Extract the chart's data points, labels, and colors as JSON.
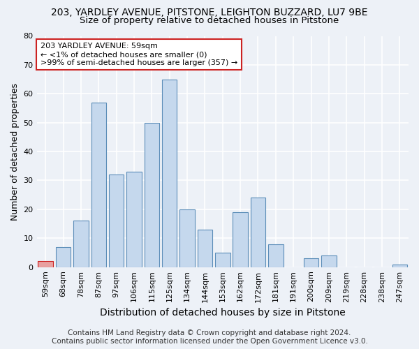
{
  "title1": "203, YARDLEY AVENUE, PITSTONE, LEIGHTON BUZZARD, LU7 9BE",
  "title2": "Size of property relative to detached houses in Pitstone",
  "xlabel": "Distribution of detached houses by size in Pitstone",
  "ylabel": "Number of detached properties",
  "categories": [
    "59sqm",
    "68sqm",
    "78sqm",
    "87sqm",
    "97sqm",
    "106sqm",
    "115sqm",
    "125sqm",
    "134sqm",
    "144sqm",
    "153sqm",
    "162sqm",
    "172sqm",
    "181sqm",
    "191sqm",
    "200sqm",
    "209sqm",
    "219sqm",
    "228sqm",
    "238sqm",
    "247sqm"
  ],
  "values": [
    2,
    7,
    16,
    57,
    32,
    33,
    50,
    65,
    20,
    13,
    5,
    19,
    24,
    8,
    0,
    3,
    4,
    0,
    0,
    0,
    1
  ],
  "bar_color": "#c5d8ed",
  "bar_edge_color": "#5b8db8",
  "highlight_index": 0,
  "highlight_color": "#e8a0a0",
  "highlight_edge_color": "#cc2222",
  "ylim": [
    0,
    80
  ],
  "yticks": [
    0,
    10,
    20,
    30,
    40,
    50,
    60,
    70,
    80
  ],
  "annotation_text1": "203 YARDLEY AVENUE: 59sqm",
  "annotation_text2": "← <1% of detached houses are smaller (0)",
  "annotation_text3": ">99% of semi-detached houses are larger (357) →",
  "footer1": "Contains HM Land Registry data © Crown copyright and database right 2024.",
  "footer2": "Contains public sector information licensed under the Open Government Licence v3.0.",
  "bg_color": "#edf1f7",
  "plot_bg_color": "#edf1f7",
  "grid_color": "#ffffff",
  "title_fontsize": 10,
  "subtitle_fontsize": 9.5,
  "axis_label_fontsize": 9,
  "tick_fontsize": 8,
  "footer_fontsize": 7.5,
  "annot_fontsize": 8
}
